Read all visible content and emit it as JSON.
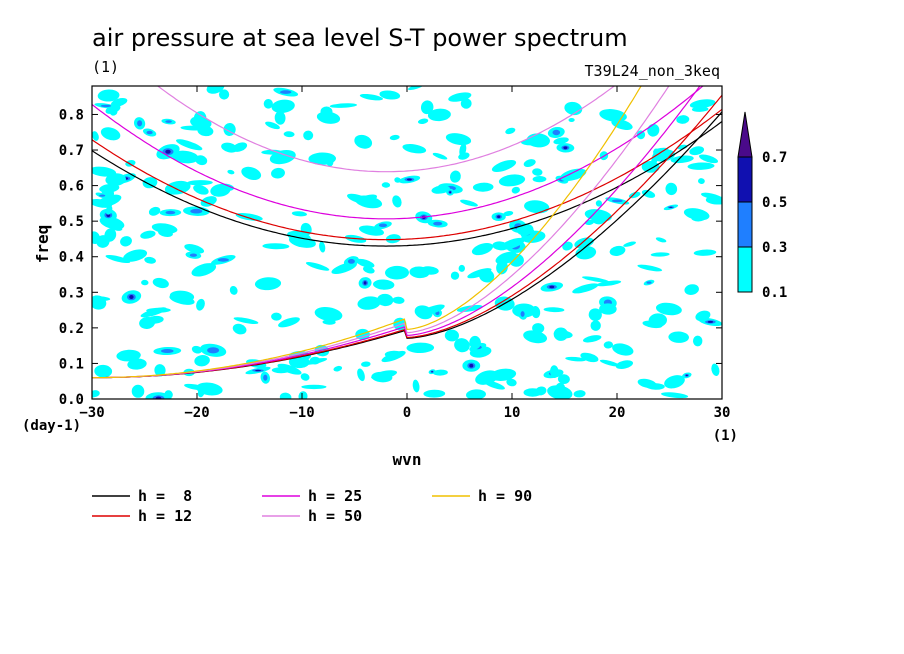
{
  "chart_data": {
    "type": "contour",
    "title": "air pressure at sea level S-T power spectrum",
    "title_unit": "(1)",
    "run_label": "T39L24_non_3keq",
    "xlabel": "wvn",
    "x_unit": "(1)",
    "ylabel": "freq",
    "y_unit": "(day-1)",
    "xlim": [
      -30,
      30
    ],
    "ylim": [
      0,
      0.88
    ],
    "xticks": [
      -30,
      -20,
      -10,
      0,
      10,
      20,
      30
    ],
    "yticks": [
      0,
      0.1,
      0.2,
      0.3,
      0.4,
      0.5,
      0.6,
      0.7,
      0.8
    ],
    "contour_levels": [
      0.1,
      0.3,
      0.5,
      0.7
    ],
    "colorbar": {
      "labels": [
        "0.1",
        "0.3",
        "0.5",
        "0.7"
      ],
      "colors": [
        "#00ffff",
        "#1f7fff",
        "#1010b0",
        "#4a0a8a"
      ]
    },
    "dispersion_curves": [
      {
        "name": "h =  8",
        "h": 8,
        "color": "#000000"
      },
      {
        "name": "h = 12",
        "h": 12,
        "color": "#dd0000"
      },
      {
        "name": "h = 25",
        "h": 25,
        "color": "#dd00dd"
      },
      {
        "name": "h = 50",
        "h": 50,
        "color": "#e080e0"
      },
      {
        "name": "h = 90",
        "h": 90,
        "color": "#f0c000"
      }
    ],
    "grid": false,
    "legend_position": "bottom"
  }
}
